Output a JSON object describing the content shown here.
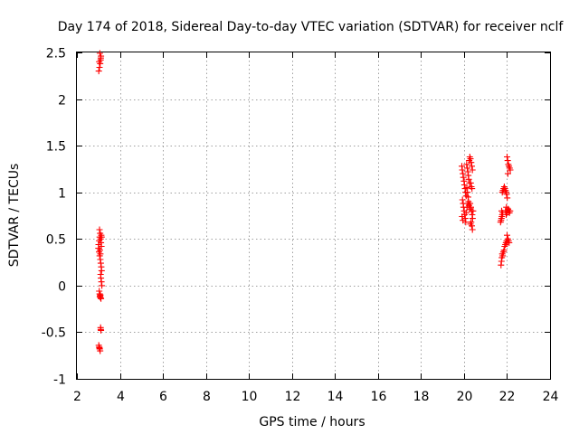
{
  "chart_data": {
    "type": "scatter",
    "title": "Day 174 of 2018, Sidereal Day-to-day VTEC variation (SDTVAR) for receiver nclf",
    "xlabel": "GPS time / hours",
    "ylabel": "SDTVAR / TECUs",
    "xlim": [
      2,
      24
    ],
    "ylim": [
      -1,
      2.5
    ],
    "xticks": [
      "2",
      "4",
      "6",
      "8",
      "10",
      "12",
      "14",
      "16",
      "18",
      "20",
      "22",
      "24"
    ],
    "yticks": [
      "-1",
      "-0.5",
      "0",
      "0.5",
      "1",
      "1.5",
      "2",
      "2.5"
    ],
    "grid": true,
    "marker": "plus",
    "series": [
      {
        "name": "SDTVAR",
        "color": "#ff0000",
        "points": [
          [
            3.02,
            2.3
          ],
          [
            3.05,
            2.34
          ],
          [
            3.08,
            2.38
          ],
          [
            3.1,
            2.42
          ],
          [
            3.12,
            2.46
          ],
          [
            3.07,
            2.49
          ],
          [
            3.11,
            2.44
          ],
          [
            3.04,
            2.4
          ],
          [
            3.0,
            0.4
          ],
          [
            3.02,
            0.44
          ],
          [
            3.04,
            0.48
          ],
          [
            3.06,
            0.52
          ],
          [
            3.08,
            0.56
          ],
          [
            3.05,
            0.6
          ],
          [
            3.1,
            0.5
          ],
          [
            3.12,
            0.46
          ],
          [
            3.14,
            0.42
          ],
          [
            3.03,
            0.36
          ],
          [
            3.06,
            0.32
          ],
          [
            3.09,
            0.28
          ],
          [
            3.11,
            0.24
          ],
          [
            3.13,
            0.2
          ],
          [
            3.15,
            0.16
          ],
          [
            3.1,
            0.12
          ],
          [
            3.12,
            0.08
          ],
          [
            3.14,
            0.04
          ],
          [
            3.16,
            0.0
          ],
          [
            3.07,
            0.38
          ],
          [
            3.09,
            0.34
          ],
          [
            3.01,
            0.44
          ],
          [
            3.13,
            0.54
          ],
          [
            3.15,
            0.52
          ],
          [
            3.04,
            -0.06
          ],
          [
            3.06,
            -0.09
          ],
          [
            3.08,
            -0.11
          ],
          [
            3.1,
            -0.13
          ],
          [
            3.12,
            -0.14
          ],
          [
            3.07,
            -0.12
          ],
          [
            3.09,
            -0.1
          ],
          [
            3.1,
            -0.45
          ],
          [
            3.12,
            -0.48
          ],
          [
            3.11,
            -0.47
          ],
          [
            3.02,
            -0.64
          ],
          [
            3.04,
            -0.66
          ],
          [
            3.06,
            -0.68
          ],
          [
            3.08,
            -0.7
          ],
          [
            3.05,
            -0.67
          ],
          [
            19.9,
            1.28
          ],
          [
            19.92,
            1.24
          ],
          [
            19.95,
            1.2
          ],
          [
            19.97,
            1.16
          ],
          [
            20.0,
            1.12
          ],
          [
            20.02,
            1.08
          ],
          [
            20.05,
            1.04
          ],
          [
            20.07,
            1.0
          ],
          [
            20.1,
            0.96
          ],
          [
            19.93,
            0.92
          ],
          [
            19.96,
            0.88
          ],
          [
            19.98,
            0.84
          ],
          [
            20.01,
            0.8
          ],
          [
            20.03,
            0.76
          ],
          [
            20.06,
            0.72
          ],
          [
            20.08,
            0.68
          ],
          [
            19.95,
            0.7
          ],
          [
            19.91,
            0.74
          ],
          [
            20.12,
            1.3
          ],
          [
            20.15,
            1.26
          ],
          [
            20.18,
            1.22
          ],
          [
            20.2,
            1.18
          ],
          [
            20.22,
            1.14
          ],
          [
            20.25,
            1.1
          ],
          [
            20.13,
            1.05
          ],
          [
            20.16,
            1.0
          ],
          [
            20.19,
            0.95
          ],
          [
            20.21,
            0.9
          ],
          [
            20.23,
            0.86
          ],
          [
            20.26,
            0.82
          ],
          [
            20.1,
            0.78
          ],
          [
            20.14,
            0.84
          ],
          [
            20.17,
            0.88
          ],
          [
            20.24,
            1.34
          ],
          [
            20.27,
            1.38
          ],
          [
            20.3,
            1.36
          ],
          [
            20.33,
            1.32
          ],
          [
            20.36,
            1.28
          ],
          [
            20.39,
            1.24
          ],
          [
            20.31,
            1.1
          ],
          [
            20.34,
            1.06
          ],
          [
            20.37,
            1.04
          ],
          [
            20.28,
            0.88
          ],
          [
            20.32,
            0.84
          ],
          [
            20.35,
            0.8
          ],
          [
            20.38,
            0.76
          ],
          [
            20.4,
            0.72
          ],
          [
            20.33,
            0.68
          ],
          [
            20.36,
            0.64
          ],
          [
            20.39,
            0.6
          ],
          [
            20.3,
            0.66
          ],
          [
            20.42,
            0.8
          ],
          [
            21.7,
            0.68
          ],
          [
            21.72,
            0.7
          ],
          [
            21.74,
            0.72
          ],
          [
            21.76,
            0.74
          ],
          [
            21.78,
            0.76
          ],
          [
            21.8,
            0.78
          ],
          [
            21.75,
            0.8
          ],
          [
            21.78,
            1.0
          ],
          [
            21.81,
            1.02
          ],
          [
            21.84,
            1.04
          ],
          [
            21.87,
            1.06
          ],
          [
            21.9,
            1.04
          ],
          [
            21.93,
            1.02
          ],
          [
            21.96,
            1.0
          ],
          [
            21.72,
            0.22
          ],
          [
            21.74,
            0.26
          ],
          [
            21.76,
            0.3
          ],
          [
            21.78,
            0.34
          ],
          [
            21.8,
            0.32
          ],
          [
            21.83,
            0.36
          ],
          [
            21.86,
            0.38
          ],
          [
            21.89,
            0.42
          ],
          [
            21.92,
            0.44
          ],
          [
            21.95,
            0.46
          ],
          [
            21.98,
            0.48
          ],
          [
            22.01,
            0.46
          ],
          [
            22.04,
            0.5
          ],
          [
            22.07,
            0.48
          ],
          [
            21.93,
            0.8
          ],
          [
            21.96,
            0.76
          ],
          [
            21.99,
            0.78
          ],
          [
            22.02,
            0.8
          ],
          [
            22.05,
            0.82
          ],
          [
            22.08,
            0.8
          ],
          [
            22.11,
            0.78
          ],
          [
            22.14,
            0.8
          ],
          [
            22.0,
            1.38
          ],
          [
            22.03,
            1.34
          ],
          [
            22.06,
            1.3
          ],
          [
            22.09,
            1.28
          ],
          [
            22.12,
            1.26
          ],
          [
            22.15,
            1.24
          ],
          [
            22.04,
            1.2
          ],
          [
            21.98,
            0.98
          ],
          [
            22.01,
            0.94
          ],
          [
            22.1,
            0.46
          ],
          [
            22.0,
            0.54
          ],
          [
            21.97,
            0.84
          ]
        ]
      }
    ]
  }
}
